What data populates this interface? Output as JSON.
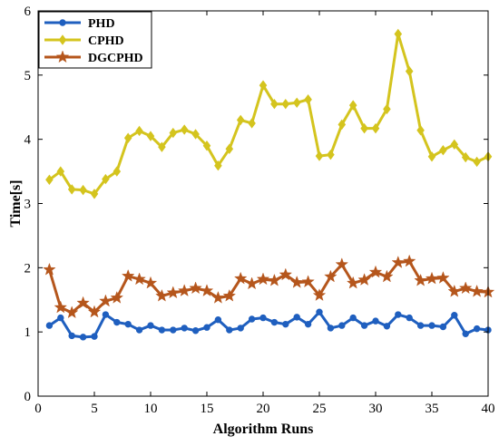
{
  "chart_data": {
    "type": "line",
    "title": "",
    "xlabel": "Algorithm Runs",
    "ylabel": "Time[s]",
    "xlim": [
      0,
      40
    ],
    "ylim": [
      0,
      6
    ],
    "xticks": [
      0,
      5,
      10,
      15,
      20,
      25,
      30,
      35,
      40
    ],
    "yticks": [
      0,
      1,
      2,
      3,
      4,
      5,
      6
    ],
    "grid": false,
    "legend_position": "top-left",
    "x": [
      1,
      2,
      3,
      4,
      5,
      6,
      7,
      8,
      9,
      10,
      11,
      12,
      13,
      14,
      15,
      16,
      17,
      18,
      19,
      20,
      21,
      22,
      23,
      24,
      25,
      26,
      27,
      28,
      29,
      30,
      31,
      32,
      33,
      34,
      35,
      36,
      37,
      38,
      39,
      40
    ],
    "series": [
      {
        "name": "PHD",
        "color": "#1f5fbf",
        "marker": "circle",
        "values": [
          1.1,
          1.22,
          0.94,
          0.92,
          0.93,
          1.27,
          1.15,
          1.12,
          1.03,
          1.1,
          1.03,
          1.03,
          1.06,
          1.02,
          1.07,
          1.19,
          1.03,
          1.06,
          1.2,
          1.22,
          1.15,
          1.12,
          1.23,
          1.12,
          1.31,
          1.06,
          1.1,
          1.22,
          1.1,
          1.17,
          1.09,
          1.27,
          1.22,
          1.1,
          1.1,
          1.08,
          1.26,
          0.97,
          1.05,
          1.03
        ]
      },
      {
        "name": "CPHD",
        "color": "#d4c41e",
        "marker": "diamond",
        "values": [
          3.37,
          3.5,
          3.22,
          3.21,
          3.15,
          3.38,
          3.5,
          4.02,
          4.13,
          4.05,
          3.88,
          4.1,
          4.15,
          4.08,
          3.9,
          3.59,
          3.85,
          4.3,
          4.25,
          4.84,
          4.55,
          4.55,
          4.57,
          4.62,
          3.74,
          3.76,
          4.23,
          4.53,
          4.17,
          4.17,
          4.47,
          5.64,
          5.06,
          4.14,
          3.73,
          3.83,
          3.92,
          3.72,
          3.65,
          3.73
        ]
      },
      {
        "name": "DGCPHD",
        "color": "#b5561c",
        "marker": "star",
        "values": [
          1.97,
          1.38,
          1.3,
          1.45,
          1.31,
          1.48,
          1.53,
          1.87,
          1.82,
          1.76,
          1.56,
          1.61,
          1.64,
          1.68,
          1.64,
          1.53,
          1.56,
          1.83,
          1.75,
          1.82,
          1.8,
          1.89,
          1.77,
          1.78,
          1.57,
          1.86,
          2.05,
          1.76,
          1.81,
          1.93,
          1.86,
          2.08,
          2.1,
          1.8,
          1.83,
          1.84,
          1.63,
          1.68,
          1.63,
          1.62
        ]
      }
    ]
  }
}
